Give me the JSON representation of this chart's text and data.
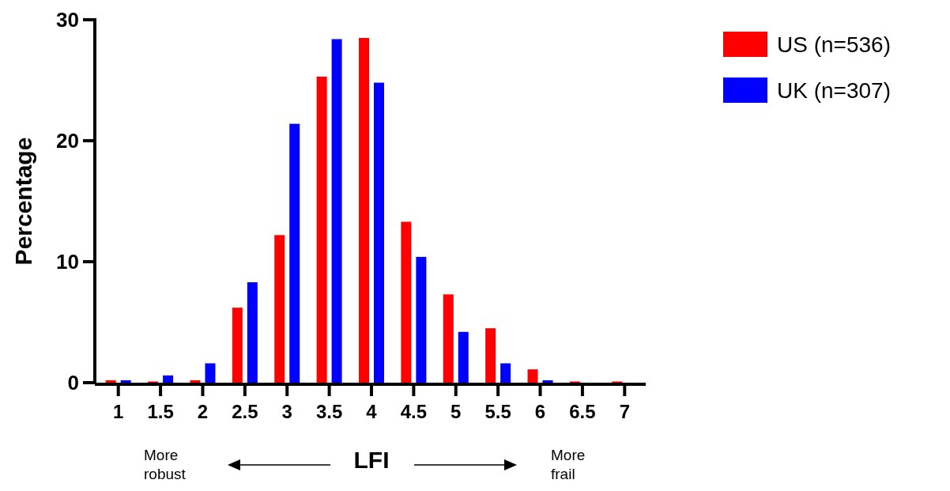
{
  "chart_data": {
    "type": "bar",
    "xlabel": "LFI",
    "ylabel": "Percentage",
    "categories": [
      "1",
      "1.5",
      "2",
      "2.5",
      "3",
      "3.5",
      "4",
      "4.5",
      "5",
      "5.5",
      "6",
      "6.5",
      "7"
    ],
    "series": [
      {
        "name": "US (n=536)",
        "color": "#ff0000",
        "values": [
          0.2,
          0.1,
          0.2,
          6.2,
          12.2,
          25.3,
          28.5,
          13.3,
          7.3,
          4.5,
          1.1,
          0.1,
          0.1
        ]
      },
      {
        "name": "UK (n=307)",
        "color": "#0000ff",
        "values": [
          0.2,
          0.6,
          1.6,
          8.3,
          21.4,
          28.4,
          24.8,
          10.4,
          4.2,
          1.6,
          0.2,
          null,
          null
        ]
      }
    ],
    "ylim": [
      0,
      30
    ],
    "yticks": [
      0,
      10,
      20,
      30
    ],
    "grid": false,
    "legend": "right",
    "annotations": [
      "More robust",
      "More frail"
    ]
  }
}
